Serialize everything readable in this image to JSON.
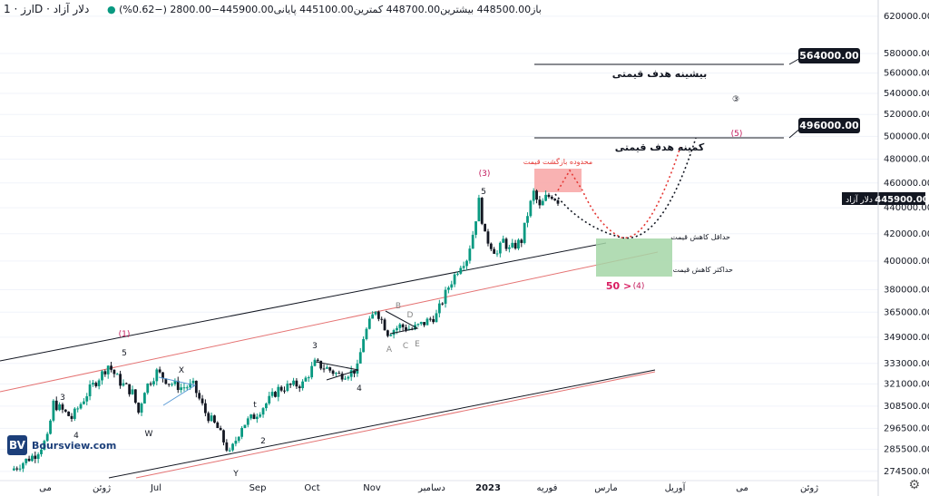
{
  "header": {
    "symbol": "ارز · 1D · دلار آزاد",
    "ohlc_text": "باز448500.00 بیشترین448700.00 کمترین445100.00 پایانی445900.00−2800.00 (−0.62%)"
  },
  "logo": {
    "mark": "BV",
    "text": "Boursview.com"
  },
  "colors": {
    "up": "#089981",
    "down": "#131722",
    "red": "#e53935",
    "green": "#089981",
    "accent": "#d81b60"
  },
  "chart_data": {
    "type": "candlestick",
    "symbol": "دلار آزاد",
    "timeframe": "1D",
    "ohlc": {
      "open": 448500,
      "high": 448700,
      "low": 445100,
      "close": 445900,
      "change": -2800,
      "change_pct": -0.62
    },
    "last_price_label": "445900.00",
    "last_price_name": "دلار آزاد",
    "y_axis": {
      "scale": "log",
      "ticks": [
        620000,
        580000,
        560000,
        540000,
        520000,
        500000,
        480000,
        460000,
        440000,
        420000,
        400000,
        380000,
        365000,
        349000,
        333000,
        321000,
        308500,
        296500,
        285500,
        274500
      ],
      "tick_labels": [
        "620000.00",
        "580000.00",
        "560000.00",
        "540000.00",
        "520000.00",
        "500000.00",
        "480000.00",
        "460000.00",
        "440000.00",
        "420000.00",
        "400000.00",
        "380000.00",
        "365000.00",
        "349000.00",
        "333000.00",
        "321000.00",
        "308500.00",
        "296500.00",
        "285500.00",
        "274500.00"
      ]
    },
    "x_axis": {
      "labels": [
        "می",
        "ژوئن",
        "Jul",
        "Sep",
        "Oct",
        "Nov",
        "دسامبر",
        "2023",
        "فوریه",
        "مارس",
        "آوریل",
        "می",
        "ژوئن"
      ]
    },
    "price_path": [
      {
        "t": 0,
        "p": 275000
      },
      {
        "t": 4,
        "p": 283000
      },
      {
        "t": 6,
        "p": 291000
      },
      {
        "t": 7,
        "p": 310000
      },
      {
        "t": 10,
        "p": 302000
      },
      {
        "t": 13,
        "p": 318000
      },
      {
        "t": 15,
        "p": 327000
      },
      {
        "t": 16,
        "p": 332000
      },
      {
        "t": 18,
        "p": 322000
      },
      {
        "t": 20,
        "p": 316000
      },
      {
        "t": 21,
        "p": 305000
      },
      {
        "t": 22,
        "p": 318000
      },
      {
        "t": 24,
        "p": 328000
      },
      {
        "t": 26,
        "p": 322000
      },
      {
        "t": 28,
        "p": 319000
      },
      {
        "t": 30,
        "p": 320000
      },
      {
        "t": 32,
        "p": 305000
      },
      {
        "t": 34,
        "p": 296500
      },
      {
        "t": 36,
        "p": 283000
      },
      {
        "t": 38,
        "p": 298000
      },
      {
        "t": 40,
        "p": 303000
      },
      {
        "t": 42,
        "p": 310000
      },
      {
        "t": 44,
        "p": 318000
      },
      {
        "t": 46,
        "p": 320000
      },
      {
        "t": 48,
        "p": 321000
      },
      {
        "t": 50,
        "p": 333000
      },
      {
        "t": 52,
        "p": 330000
      },
      {
        "t": 54,
        "p": 326000
      },
      {
        "t": 56,
        "p": 328000
      },
      {
        "t": 57,
        "p": 330000
      },
      {
        "t": 58,
        "p": 349000
      },
      {
        "t": 60,
        "p": 367000
      },
      {
        "t": 61,
        "p": 360000
      },
      {
        "t": 62,
        "p": 352000
      },
      {
        "t": 64,
        "p": 356000
      },
      {
        "t": 66,
        "p": 354000
      },
      {
        "t": 68,
        "p": 358000
      },
      {
        "t": 70,
        "p": 363000
      },
      {
        "t": 72,
        "p": 382000
      },
      {
        "t": 74,
        "p": 398000
      },
      {
        "t": 75,
        "p": 402000
      },
      {
        "t": 76,
        "p": 420000
      },
      {
        "t": 77,
        "p": 445000
      },
      {
        "t": 78,
        "p": 418000
      },
      {
        "t": 80,
        "p": 405000
      },
      {
        "t": 81,
        "p": 415000
      },
      {
        "t": 82,
        "p": 408000
      },
      {
        "t": 84,
        "p": 415000
      },
      {
        "t": 85,
        "p": 435000
      },
      {
        "t": 86,
        "p": 452000
      },
      {
        "t": 87,
        "p": 440000
      },
      {
        "t": 88,
        "p": 448000
      },
      {
        "t": 89,
        "p": 450000
      },
      {
        "t": 90,
        "p": 445900
      }
    ],
    "levels": [
      {
        "name": "بیشینه هدف قیمتی",
        "price": 564000,
        "label": "564000.00"
      },
      {
        "name": "کمینه هدف قیمتی",
        "price": 496000,
        "label": "496000.00"
      }
    ],
    "zones": [
      {
        "name": "محدوده بازگشت قیمت",
        "color": "red"
      },
      {
        "name_top": "حداقل کاهش قیمت",
        "name_bottom": "حداکثر کاهش قیمت",
        "color": "green"
      }
    ],
    "wave_labels": [
      "(1)",
      "5",
      "3",
      "4",
      "X",
      "W",
      "Y",
      "t",
      "2",
      "3",
      "4",
      "B",
      "D",
      "A",
      "C",
      "E",
      "(3)",
      "5",
      "(4)",
      "50 >",
      "(5)",
      "③"
    ]
  }
}
